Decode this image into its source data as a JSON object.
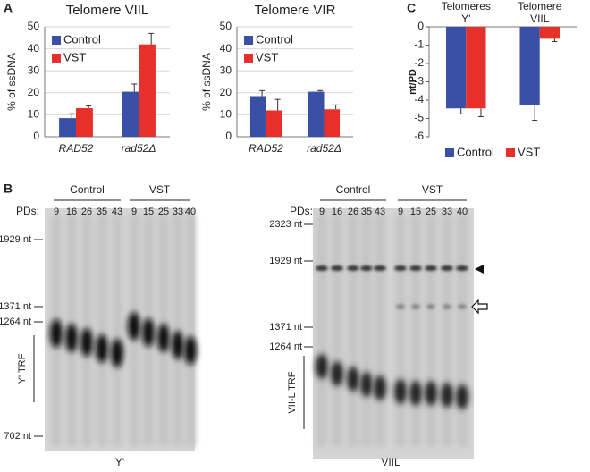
{
  "panel_labels": [
    "A",
    "B",
    "C"
  ],
  "chart_data": [
    {
      "type": "bar",
      "title": "Telomere VIIL",
      "y_label": "% of ssDNA",
      "categories": [
        "RAD52",
        "rad52Δ"
      ],
      "series": [
        {
          "name": "Control",
          "color": "#3a4fa6",
          "values": [
            8.5,
            20.5
          ],
          "errors": [
            2,
            3.5
          ]
        },
        {
          "name": "VST",
          "color": "#e8302a",
          "values": [
            13,
            42
          ],
          "errors": [
            1,
            5
          ]
        }
      ],
      "ylim": [
        0,
        50
      ],
      "yticks": [
        0,
        10,
        20,
        30,
        40,
        50
      ],
      "grid": true,
      "legend": "upper left"
    },
    {
      "type": "bar",
      "title": "Telomere VIR",
      "y_label": "% of ssDNA",
      "categories": [
        "RAD52",
        "rad52Δ"
      ],
      "series": [
        {
          "name": "Control",
          "color": "#3a4fa6",
          "values": [
            18.5,
            20.5
          ],
          "errors": [
            2.5,
            0.5
          ]
        },
        {
          "name": "VST",
          "color": "#e8302a",
          "values": [
            12,
            12.5
          ],
          "errors": [
            5,
            2
          ]
        }
      ],
      "ylim": [
        0,
        50
      ],
      "yticks": [
        0,
        10,
        20,
        30,
        40,
        50
      ],
      "grid": true,
      "legend": "upper left"
    },
    {
      "type": "bar",
      "y_label": "nt/PD",
      "categories": [
        [
          "Telomeres",
          "Y'"
        ],
        [
          "Telomere",
          "VIIL"
        ]
      ],
      "series": [
        {
          "name": "Control",
          "color": "#3a4fa6",
          "values": [
            -4.45,
            -4.25
          ],
          "errors": [
            0.3,
            0.85
          ]
        },
        {
          "name": "VST",
          "color": "#e8302a",
          "values": [
            -4.45,
            -0.65
          ],
          "errors": [
            0.45,
            0.15
          ]
        }
      ],
      "ylim": [
        -6,
        0
      ],
      "yticks": [
        0,
        -1,
        -2,
        -3,
        -4,
        -5,
        -6
      ],
      "grid": false,
      "legend": "bottom"
    }
  ],
  "gels": [
    {
      "groups": [
        {
          "label": "Control",
          "lanes": [
            9,
            16,
            26,
            35,
            43
          ]
        },
        {
          "label": "VST",
          "lanes": [
            9,
            15,
            25,
            33,
            40
          ]
        }
      ],
      "pds_label": "PDs:",
      "markers": [
        "1929 nt",
        "1371 nt",
        "1264 nt",
        "702 nt"
      ],
      "trf_label": "Y' TRF",
      "caption": "Y'"
    },
    {
      "groups": [
        {
          "label": "Control",
          "lanes": [
            9,
            16,
            26,
            35,
            43
          ]
        },
        {
          "label": "VST",
          "lanes": [
            9,
            15,
            25,
            33,
            40
          ]
        }
      ],
      "pds_label": "PDs:",
      "markers": [
        "2323 nt",
        "1929 nt",
        "1371 nt",
        "1264 nt"
      ],
      "trf_label": "VII-L TRF",
      "caption": "VIIL"
    }
  ]
}
